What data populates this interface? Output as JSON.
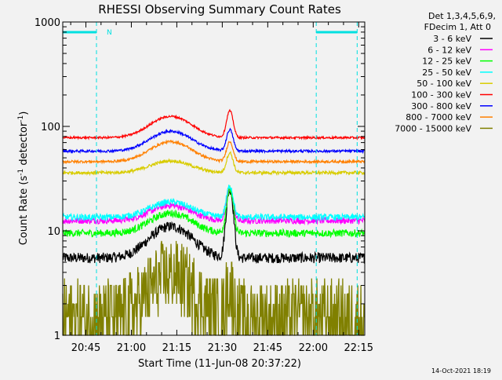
{
  "chart_data": {
    "type": "line",
    "title": "RHESSI Observing Summary Count Rates",
    "xlabel": "Start Time (11-Jun-08 20:37:22)",
    "ylabel_main": "Count Rate (s",
    "ylabel_sup1": "-1",
    "ylabel_mid": " detector",
    "ylabel_sup2": "-1",
    "ylabel_end": ")",
    "y_scale": "log",
    "ylim": [
      1,
      1000
    ],
    "xlim_minutes": [
      37.37,
      137.0
    ],
    "x_ticks": [
      {
        "label": "20:45",
        "minute": 45
      },
      {
        "label": "21:00",
        "minute": 60
      },
      {
        "label": "21:15",
        "minute": 75
      },
      {
        "label": "21:30",
        "minute": 90
      },
      {
        "label": "21:45",
        "minute": 105
      },
      {
        "label": "22:00",
        "minute": 120
      },
      {
        "label": "22:15",
        "minute": 135
      }
    ],
    "y_ticks": [
      {
        "label": "1",
        "value": 1
      },
      {
        "label": "10",
        "value": 10
      },
      {
        "label": "100",
        "value": 100
      },
      {
        "label": "1000",
        "value": 1000
      }
    ],
    "legend_header": [
      "Det 1,3,4,5,6,9,",
      "FDecim 1, Att 0"
    ],
    "legend_position": "right",
    "annotation_N": "N",
    "night_markers_minutes": [
      {
        "start": 37.37,
        "end": 48.5
      },
      {
        "start": 121.0,
        "end": 134.5
      }
    ],
    "series": [
      {
        "name": "3 - 6 keV",
        "color": "#000000",
        "base": 5.5,
        "hump": 2.0,
        "flare": 4.5,
        "noise": 0.05
      },
      {
        "name": "6 - 12 keV",
        "color": "#ff00ff",
        "base": 12.5,
        "hump": 1.4,
        "flare": 2.0,
        "noise": 0.03
      },
      {
        "name": "12 - 25 keV",
        "color": "#00ff00",
        "base": 9.5,
        "hump": 1.55,
        "flare": 2.6,
        "noise": 0.035
      },
      {
        "name": "25 - 50 keV",
        "color": "#00ffff",
        "base": 13.5,
        "hump": 1.4,
        "flare": 2.0,
        "noise": 0.03
      },
      {
        "name": "50 - 100 keV",
        "color": "#d8cc00",
        "base": 36,
        "hump": 1.3,
        "flare": 1.55,
        "noise": 0.015
      },
      {
        "name": "100 - 300 keV",
        "color": "#ff0000",
        "base": 78,
        "hump": 1.6,
        "flare": 1.8,
        "noise": 0.01
      },
      {
        "name": "300 - 800 keV",
        "color": "#0000ff",
        "base": 58,
        "hump": 1.55,
        "flare": 1.6,
        "noise": 0.012
      },
      {
        "name": "800 - 7000 keV",
        "color": "#ff8000",
        "base": 46,
        "hump": 1.55,
        "flare": 1.55,
        "noise": 0.012
      },
      {
        "name": "7000 - 15000 keV",
        "color": "#808000",
        "base": 1.5,
        "hump": 2.5,
        "flare": 2.0,
        "noise": 0.3
      }
    ],
    "flare_peak_minute": 92.5,
    "hump_peak_minute": 73
  },
  "footer_date": "14-Oct-2021 18:19"
}
